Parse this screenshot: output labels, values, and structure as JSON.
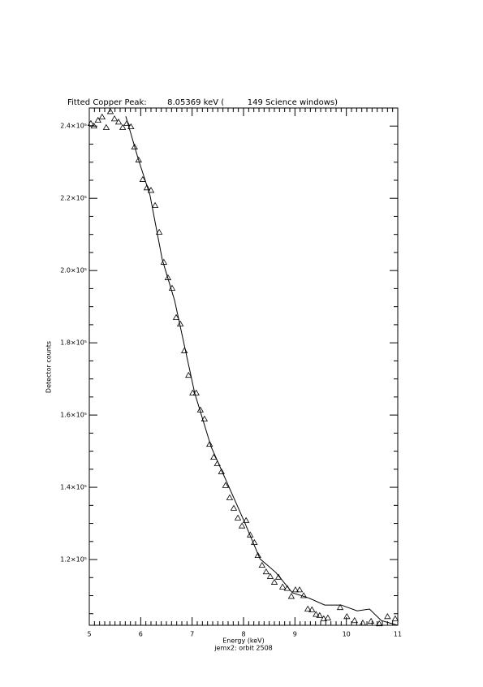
{
  "chart_data": {
    "type": "scatter",
    "title": "Fitted Copper Peak:        8.05369 keV (         149 Science windows)",
    "x_label": "Energy (keV)",
    "subtitle": "jemx2: orbit 2508",
    "y_label": "Detector counts",
    "xlim": [
      5,
      11
    ],
    "xticks": [
      5,
      6,
      7,
      8,
      9,
      10,
      11
    ],
    "xminor": 10,
    "ylim": [
      101800,
      245000
    ],
    "yticks": [
      {
        "value": 120000,
        "label": "1.2×10⁵"
      },
      {
        "value": 140000,
        "label": "1.4×10⁵"
      },
      {
        "value": 160000,
        "label": "1.6×10⁵"
      },
      {
        "value": 180000,
        "label": "1.8×10⁵"
      },
      {
        "value": 200000,
        "label": "2.0×10⁵"
      },
      {
        "value": 220000,
        "label": "2.2×10⁵"
      },
      {
        "value": 240000,
        "label": "2.4×10⁵"
      }
    ],
    "yminor": 4,
    "series": [
      {
        "type": "scatter",
        "marker": "triangle",
        "color": "#000000",
        "x": [
          5.03,
          5.09,
          5.17,
          5.25,
          5.33,
          5.41,
          5.49,
          5.57,
          5.65,
          5.73,
          5.81,
          5.88,
          5.96,
          6.04,
          6.12,
          6.2,
          6.28,
          6.36,
          6.45,
          6.53,
          6.61,
          6.69,
          6.77,
          6.85,
          6.93,
          7.01,
          7.08,
          7.16,
          7.24,
          7.34,
          7.42,
          7.49,
          7.57,
          7.65,
          7.73,
          7.81,
          7.89,
          7.97,
          8.05,
          8.13,
          8.21,
          8.28,
          8.36,
          8.44,
          8.52,
          8.6,
          8.68,
          8.76,
          8.85,
          8.93,
          9.01,
          9.09,
          9.17,
          9.25,
          9.33,
          9.41,
          9.48,
          9.56,
          9.64,
          9.88,
          10.01,
          10.16,
          10.32,
          10.48,
          10.64,
          10.8,
          10.95
        ],
        "values": [
          240700,
          240000,
          241600,
          242500,
          239600,
          244000,
          242000,
          241100,
          239600,
          240700,
          239800,
          234200,
          230600,
          225200,
          222900,
          222200,
          218000,
          210600,
          202300,
          198000,
          195100,
          187000,
          185200,
          177800,
          171000,
          166100,
          166100,
          161400,
          158900,
          151900,
          148300,
          146500,
          144300,
          140500,
          137100,
          134200,
          131500,
          129300,
          130800,
          126800,
          124700,
          121100,
          118400,
          116600,
          115300,
          113700,
          115100,
          112400,
          112000,
          109800,
          111600,
          111600,
          110000,
          106300,
          106100,
          104800,
          104500,
          103600,
          103800,
          106700,
          104200,
          103100,
          102400,
          102900,
          102200,
          104200,
          103600
        ]
      },
      {
        "type": "line",
        "color": "#000000",
        "x": [
          5.71,
          5.95,
          6.18,
          6.42,
          6.66,
          7.05,
          7.37,
          8.0,
          8.32,
          8.63,
          8.95,
          9.26,
          9.58,
          9.9,
          10.21,
          10.45,
          10.68,
          11.0
        ],
        "values": [
          242700,
          231000,
          220900,
          203000,
          191700,
          166100,
          151200,
          131000,
          120200,
          116400,
          110800,
          109400,
          107400,
          107400,
          105800,
          106300,
          103100,
          101800
        ]
      }
    ]
  }
}
